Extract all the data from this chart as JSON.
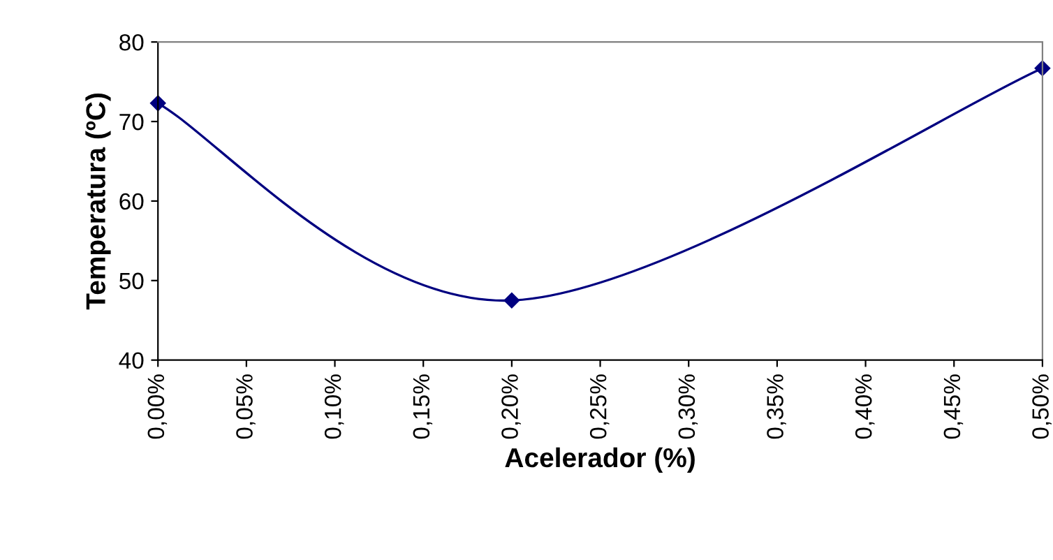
{
  "chart_data": {
    "type": "line",
    "xlabel": "Acelerador (%)",
    "ylabel": "Temperatura (ºC)",
    "x": [
      0,
      0.2,
      0.5
    ],
    "series": [
      {
        "color": "#000080",
        "values": [
          72.3,
          47.5,
          76.7
        ]
      }
    ],
    "xlim": [
      0,
      0.5
    ],
    "xticks": [
      {
        "value": 0,
        "label": "0,00%"
      },
      {
        "value": 0.05,
        "label": "0,05%"
      },
      {
        "value": 0.1,
        "label": "0,10%"
      },
      {
        "value": 0.15,
        "label": "0,15%"
      },
      {
        "value": 0.2,
        "label": "0,20%"
      },
      {
        "value": 0.25,
        "label": "0,25%"
      },
      {
        "value": 0.3,
        "label": "0,30%"
      },
      {
        "value": 0.35,
        "label": "0,35%"
      },
      {
        "value": 0.4,
        "label": "0,40%"
      },
      {
        "value": 0.45,
        "label": "0,45%"
      },
      {
        "value": 0.5,
        "label": "0,50%"
      }
    ],
    "ylim": [
      40,
      80
    ],
    "yticks": [
      40,
      50,
      60,
      70,
      80
    ],
    "grid": false,
    "legend": false,
    "marker": "diamond",
    "line_style": "solid"
  }
}
